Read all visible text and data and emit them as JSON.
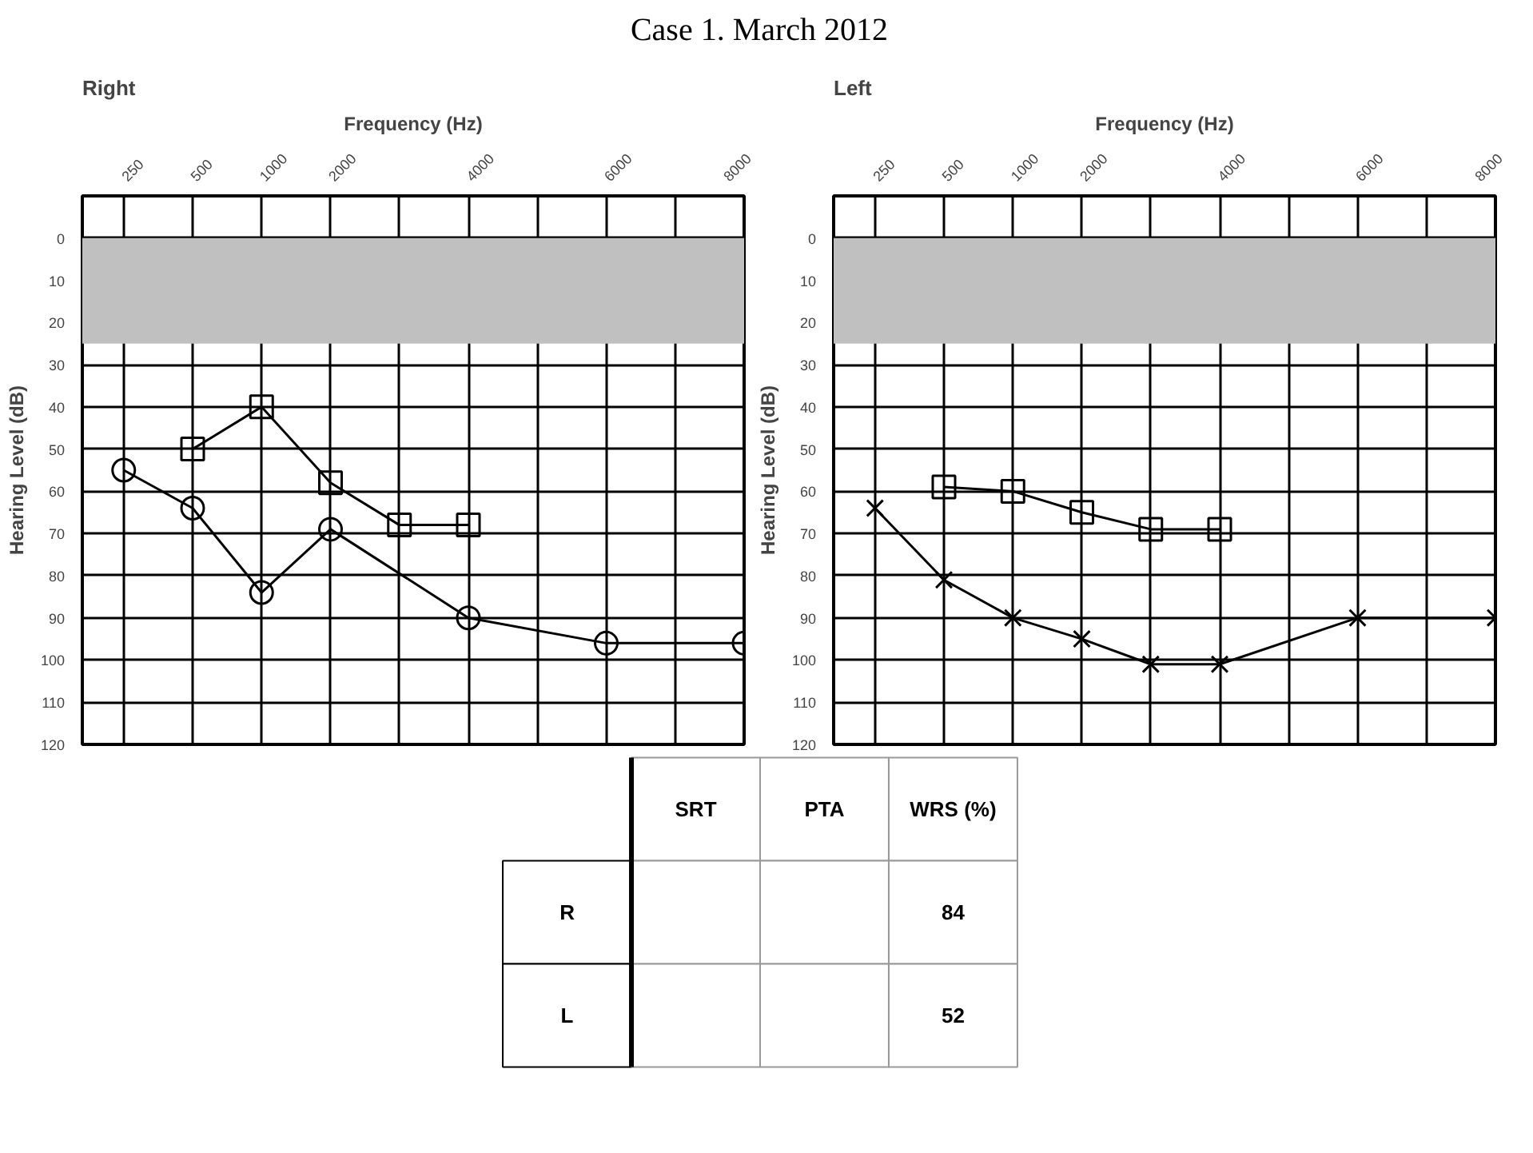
{
  "chart_data": [
    {
      "type": "line",
      "title": "Right",
      "annotations": [
        "Case 1. March 2012"
      ],
      "xlabel": "Frequency (Hz)",
      "ylabel": "Hearing Level (dB)",
      "categories": [
        "250",
        "500",
        "1000",
        "2000",
        null,
        "4000",
        null,
        "6000",
        null,
        "8000"
      ],
      "ylim": [
        120,
        -10
      ],
      "yticks": [
        0,
        10,
        20,
        30,
        40,
        50,
        60,
        70,
        80,
        90,
        100,
        110,
        120
      ],
      "grid": true,
      "bands": [
        {
          "axis": "y",
          "from": 0,
          "to": 25,
          "color": "#c0c0c0"
        }
      ],
      "series": [
        {
          "color": "#000000",
          "marker": "circle",
          "values": [
            55,
            64,
            84,
            69,
            null,
            90,
            null,
            96,
            null,
            96
          ]
        },
        {
          "color": "#000000",
          "marker": "square",
          "values": [
            null,
            50,
            40,
            58,
            68,
            68,
            null,
            null,
            null,
            null
          ]
        }
      ]
    },
    {
      "type": "line",
      "title": "Left",
      "xlabel": "Frequency (Hz)",
      "ylabel": "Hearing Level (dB)",
      "categories": [
        "250",
        "500",
        "1000",
        "2000",
        null,
        "4000",
        null,
        "6000",
        null,
        "8000"
      ],
      "ylim": [
        120,
        -10
      ],
      "yticks": [
        0,
        10,
        20,
        30,
        40,
        50,
        60,
        70,
        80,
        90,
        100,
        110,
        120
      ],
      "grid": true,
      "bands": [
        {
          "axis": "y",
          "from": 0,
          "to": 25,
          "color": "#c0c0c0"
        }
      ],
      "series": [
        {
          "color": "#000000",
          "marker": "cross",
          "values": [
            64,
            81,
            90,
            95,
            101,
            101,
            null,
            90,
            null,
            90
          ]
        },
        {
          "color": "#000000",
          "marker": "square",
          "values": [
            null,
            59,
            60,
            65,
            69,
            69,
            null,
            null,
            null,
            null
          ]
        }
      ]
    },
    {
      "type": "heatmap",
      "categories": [
        "SRT",
        "PTA",
        "WRS (%)"
      ],
      "y_categories": [
        "R",
        "L"
      ],
      "cells": [
        [
          null,
          null,
          84
        ],
        [
          null,
          null,
          52
        ]
      ],
      "data_labels": true
    }
  ]
}
